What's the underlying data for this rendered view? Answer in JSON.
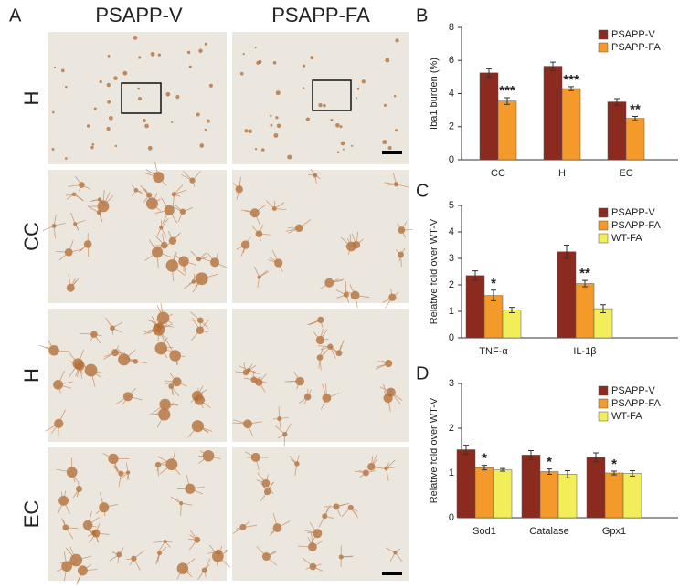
{
  "panel_a": {
    "label": "A",
    "columns": [
      "PSAPP-V",
      "PSAPP-FA"
    ],
    "rows": [
      "H",
      "CC",
      "H",
      "EC"
    ]
  },
  "chart_data": [
    {
      "type": "bar",
      "panel_label": "B",
      "y_label": "Iba1 burden (%)",
      "categories": [
        "CC",
        "H",
        "EC"
      ],
      "series": [
        {
          "name": "PSAPP-V",
          "color": "#8b2a1e",
          "values": [
            5.25,
            5.65,
            3.5
          ],
          "errors": [
            0.25,
            0.25,
            0.2
          ],
          "significance": [
            null,
            null,
            null
          ]
        },
        {
          "name": "PSAPP-FA",
          "color": "#f39a2a",
          "values": [
            3.55,
            4.3,
            2.5
          ],
          "errors": [
            0.2,
            0.12,
            0.12
          ],
          "significance": [
            "***",
            "***",
            "**"
          ]
        }
      ],
      "ylim": [
        0,
        8
      ],
      "yticks": [
        0,
        2,
        4,
        6,
        8
      ],
      "legend": "upper right"
    },
    {
      "type": "bar",
      "panel_label": "C",
      "y_label": "Relative fold over WT-V",
      "categories": [
        "TNF-α",
        "IL-1β"
      ],
      "series": [
        {
          "name": "PSAPP-V",
          "color": "#8b2a1e",
          "values": [
            2.35,
            3.25
          ],
          "errors": [
            0.18,
            0.25
          ],
          "significance": [
            null,
            null
          ]
        },
        {
          "name": "PSAPP-FA",
          "color": "#f39a2a",
          "values": [
            1.6,
            2.05
          ],
          "errors": [
            0.2,
            0.12
          ],
          "significance": [
            "*",
            "**"
          ]
        },
        {
          "name": "WT-FA",
          "color": "#f2ee5a",
          "values": [
            1.05,
            1.1
          ],
          "errors": [
            0.1,
            0.15
          ],
          "significance": [
            null,
            null
          ]
        }
      ],
      "ylim": [
        0,
        5
      ],
      "yticks": [
        0,
        1,
        2,
        3,
        4,
        5
      ],
      "legend": "upper right"
    },
    {
      "type": "bar",
      "panel_label": "D",
      "y_label": "Relative fold over WT-V",
      "categories": [
        "Sod1",
        "Catalase",
        "Gpx1"
      ],
      "series": [
        {
          "name": "PSAPP-V",
          "color": "#8b2a1e",
          "values": [
            1.52,
            1.4,
            1.35
          ],
          "errors": [
            0.1,
            0.1,
            0.1
          ],
          "significance": [
            null,
            null,
            null
          ]
        },
        {
          "name": "PSAPP-FA",
          "color": "#f39a2a",
          "values": [
            1.12,
            1.03,
            1.0
          ],
          "errors": [
            0.05,
            0.06,
            0.04
          ],
          "significance": [
            "*",
            "*",
            "*"
          ]
        },
        {
          "name": "WT-FA",
          "color": "#f2ee5a",
          "values": [
            1.07,
            0.97,
            0.99
          ],
          "errors": [
            0.03,
            0.08,
            0.06
          ],
          "significance": [
            null,
            null,
            null
          ]
        }
      ],
      "ylim": [
        0,
        3
      ],
      "yticks": [
        0,
        1,
        2,
        3
      ],
      "legend": "upper right"
    }
  ]
}
